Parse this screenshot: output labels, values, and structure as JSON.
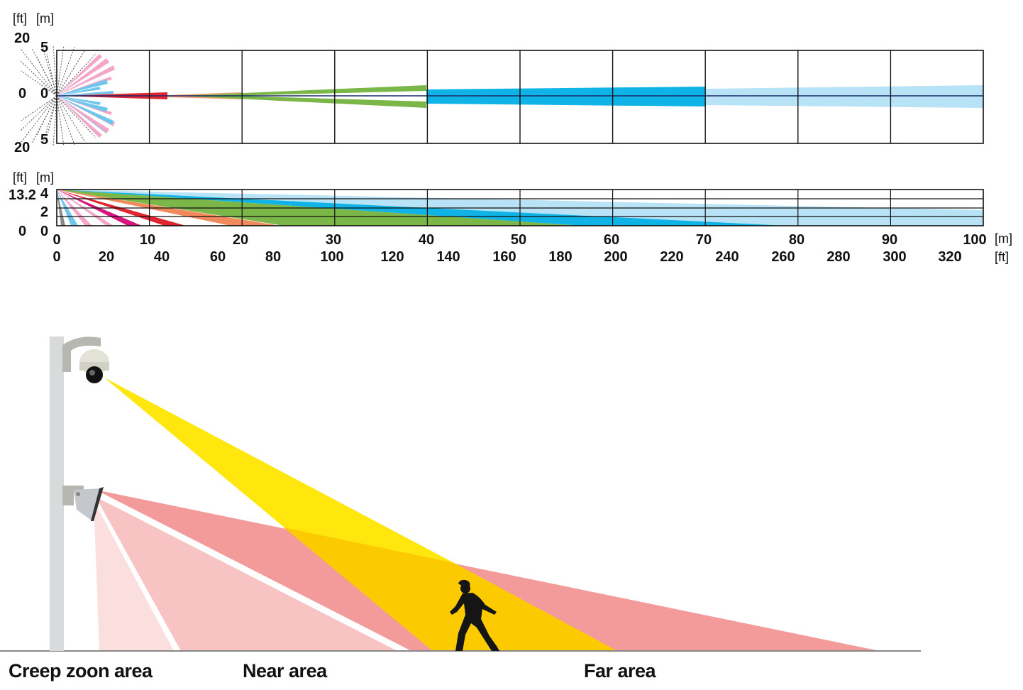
{
  "top_view": {
    "unit_ft": "[ft]",
    "unit_m": "[m]",
    "y_ft_labels": [
      "20",
      "0",
      "20"
    ],
    "y_m_labels": [
      "5",
      "0",
      "5"
    ]
  },
  "side_view": {
    "unit_ft": "[ft]",
    "unit_m": "[m]",
    "y_ft_labels": [
      "13.2",
      "0"
    ],
    "y_m_labels": [
      "4",
      "2",
      "0"
    ]
  },
  "x_axis": {
    "meters": [
      "0",
      "10",
      "20",
      "30",
      "40",
      "50",
      "60",
      "70",
      "80",
      "90",
      "100"
    ],
    "feet": [
      "0",
      "20",
      "40",
      "60",
      "80",
      "100",
      "120",
      "140",
      "160",
      "180",
      "200",
      "220",
      "240",
      "260",
      "280",
      "300",
      "320"
    ],
    "unit_m": "[m]",
    "unit_ft": "[ft]"
  },
  "colors": {
    "gray": "#444444",
    "pink": "#f4a6c8",
    "light_blue": "#6ec6ec",
    "red": "#e02530",
    "green": "#7ab648",
    "cyan": "#0fb3e6",
    "pale_blue": "#b8e2f6",
    "magenta": "#d6147c",
    "orange": "#f08a5d",
    "yellow": "#ffe600",
    "zone_red": "#f39a9a",
    "zone_pink": "#f7c3c3",
    "zone_pale": "#fbdede"
  },
  "illustration": {
    "labels": {
      "creep": "Creep zoon area",
      "near": "Near area",
      "far": "Far area"
    }
  }
}
